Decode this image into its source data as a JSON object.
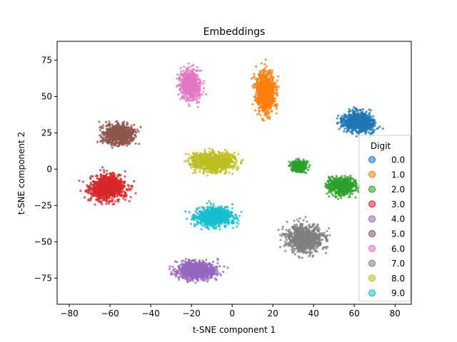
{
  "chart_data": {
    "type": "scatter",
    "title": "Embeddings",
    "xlabel": "t-SNE component 1",
    "ylabel": "t-SNE component 2",
    "xlim": [
      -86,
      88
    ],
    "ylim": [
      -93,
      88
    ],
    "xticks": [
      -80,
      -60,
      -40,
      -20,
      0,
      20,
      40,
      60,
      80
    ],
    "yticks": [
      -75,
      -50,
      -25,
      0,
      25,
      50,
      75
    ],
    "grid": false,
    "legend": {
      "title": "Digit",
      "placement": "right",
      "entries": [
        "0.0",
        "1.0",
        "2.0",
        "3.0",
        "4.0",
        "5.0",
        "6.0",
        "7.0",
        "8.0",
        "9.0"
      ]
    },
    "series": [
      {
        "name": "0.0",
        "color": "#1f77b4",
        "clusters": [
          {
            "x": [
              44,
              80
            ],
            "y": [
              17,
              48
            ],
            "n": 900
          }
        ]
      },
      {
        "name": "1.0",
        "color": "#ff7f0e",
        "clusters": [
          {
            "x": [
              5,
              28
            ],
            "y": [
              20,
              86
            ],
            "n": 900
          }
        ]
      },
      {
        "name": "2.0",
        "color": "#2ca02c",
        "clusters": [
          {
            "x": [
              24,
              42
            ],
            "y": [
              -7,
              11
            ],
            "n": 300
          },
          {
            "x": [
              38,
              70
            ],
            "y": [
              -27,
              4
            ],
            "n": 600
          }
        ]
      },
      {
        "name": "3.0",
        "color": "#d62728",
        "clusters": [
          {
            "x": [
              -82,
              -40
            ],
            "y": [
              -33,
              8
            ],
            "n": 950
          }
        ]
      },
      {
        "name": "4.0",
        "color": "#9467bd",
        "clusters": [
          {
            "x": [
              -40,
              5
            ],
            "y": [
              -84,
              -55
            ],
            "n": 850
          }
        ]
      },
      {
        "name": "5.0",
        "color": "#8c564b",
        "clusters": [
          {
            "x": [
              -74,
              -37
            ],
            "y": [
              8,
              40
            ],
            "n": 800
          }
        ]
      },
      {
        "name": "6.0",
        "color": "#e377c2",
        "clusters": [
          {
            "x": [
              -32,
              -9
            ],
            "y": [
              35,
              82
            ],
            "n": 700
          }
        ]
      },
      {
        "name": "7.0",
        "color": "#7f7f7f",
        "clusters": [
          {
            "x": [
              14,
              58
            ],
            "y": [
              -70,
              -26
            ],
            "n": 850
          }
        ]
      },
      {
        "name": "8.0",
        "color": "#bcbd22",
        "clusters": [
          {
            "x": [
              -34,
              16
            ],
            "y": [
              -11,
              21
            ],
            "n": 900
          }
        ]
      },
      {
        "name": "9.0",
        "color": "#17becf",
        "clusters": [
          {
            "x": [
              -30,
              13
            ],
            "y": [
              -48,
              -17
            ],
            "n": 850
          }
        ]
      }
    ]
  }
}
